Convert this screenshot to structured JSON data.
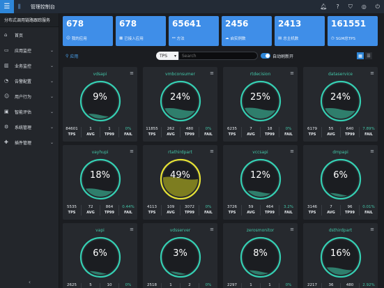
{
  "app": {
    "title": "管理控制台"
  },
  "sidebar": {
    "header": "分布式调用链路跟踪服务",
    "items": [
      {
        "label": "首页",
        "icon": "home-icon",
        "glyph": "⌂",
        "has_children": false
      },
      {
        "label": "应用监控",
        "icon": "monitor-icon",
        "glyph": "▭",
        "has_children": true
      },
      {
        "label": "业务监控",
        "icon": "chart-icon",
        "glyph": "▥",
        "has_children": true
      },
      {
        "label": "告警配置",
        "icon": "bell-icon",
        "glyph": "◔",
        "has_children": true
      },
      {
        "label": "用户行为",
        "icon": "user-icon",
        "glyph": "☺",
        "has_children": true
      },
      {
        "label": "智能评估",
        "icon": "brain-icon",
        "glyph": "▣",
        "has_children": true
      },
      {
        "label": "系统管理",
        "icon": "gear-icon",
        "glyph": "⚙",
        "has_children": true
      },
      {
        "label": "插件管理",
        "icon": "puzzle-icon",
        "glyph": "✚",
        "has_children": true
      }
    ],
    "collapse_glyph": "‹"
  },
  "stats": [
    {
      "value": "678",
      "label": "我的应用",
      "icon": "user-icon"
    },
    {
      "value": "678",
      "label": "已接入应用",
      "icon": "grid-icon"
    },
    {
      "value": "65641",
      "label": "方法",
      "icon": "link-icon"
    },
    {
      "value": "2456",
      "label": "启实例数",
      "icon": "cloud-icon"
    },
    {
      "value": "2413",
      "label": "总主机数",
      "icon": "server-icon"
    },
    {
      "value": "161551",
      "label": "SGM总TPS",
      "icon": "speed-icon"
    }
  ],
  "toolbar": {
    "breadcrumb": "应用",
    "metric_select": "TPS",
    "search_placeholder": "Search",
    "auto_refresh_label": "自动刷新开",
    "auto_refresh_on": true
  },
  "colors": {
    "normal_ring": "#35d0b3",
    "normal_fill": "#2f7e6c",
    "warn_ring": "#e6e235",
    "warn_fill": "#7d7d20"
  },
  "cards": [
    {
      "name": "vdsapi",
      "pct": "9%",
      "tps": "84601",
      "avg": "1",
      "tp99": "1",
      "fail": "0%",
      "status": "normal"
    },
    {
      "name": "vmbconsumer",
      "pct": "24%",
      "tps": "11855",
      "avg": "262",
      "tp99": "480",
      "fail": "0%",
      "status": "normal"
    },
    {
      "name": "rtdecision",
      "pct": "25%",
      "tps": "6235",
      "avg": "7",
      "tp99": "18",
      "fail": "0%",
      "status": "normal"
    },
    {
      "name": "dataservice",
      "pct": "24%",
      "tps": "6179",
      "avg": "55",
      "tp99": "640",
      "fail": "7.89%",
      "status": "normal"
    },
    {
      "name": "vayhupi",
      "pct": "18%",
      "tps": "5535",
      "avg": "72",
      "tp99": "864",
      "fail": "0.44%",
      "status": "normal"
    },
    {
      "name": "rtathirdpart",
      "pct": "49%",
      "tps": "4113",
      "avg": "109",
      "tp99": "3072",
      "fail": "0%",
      "status": "warn"
    },
    {
      "name": "vccsapi",
      "pct": "12%",
      "tps": "3726",
      "avg": "59",
      "tp99": "464",
      "fail": "3.2%",
      "status": "normal"
    },
    {
      "name": "dmpapi",
      "pct": "6%",
      "tps": "3146",
      "avg": "7",
      "tp99": "96",
      "fail": "0.01%",
      "status": "normal"
    },
    {
      "name": "vapi",
      "pct": "6%",
      "tps": "2625",
      "avg": "5",
      "tp99": "10",
      "fail": "0%",
      "status": "normal"
    },
    {
      "name": "vdsserver",
      "pct": "3%",
      "tps": "2518",
      "avg": "1",
      "tp99": "2",
      "fail": "0%",
      "status": "normal"
    },
    {
      "name": "zerosmonitor",
      "pct": "8%",
      "tps": "2297",
      "avg": "1",
      "tp99": "1",
      "fail": "0%",
      "status": "normal"
    },
    {
      "name": "dsthirdpart",
      "pct": "16%",
      "tps": "2217",
      "avg": "36",
      "tp99": "480",
      "fail": "2.92%",
      "status": "normal"
    }
  ],
  "metric_labels": {
    "tps": "TPS",
    "avg": "AVG",
    "tp99": "TP99",
    "fail": "FAIL"
  }
}
